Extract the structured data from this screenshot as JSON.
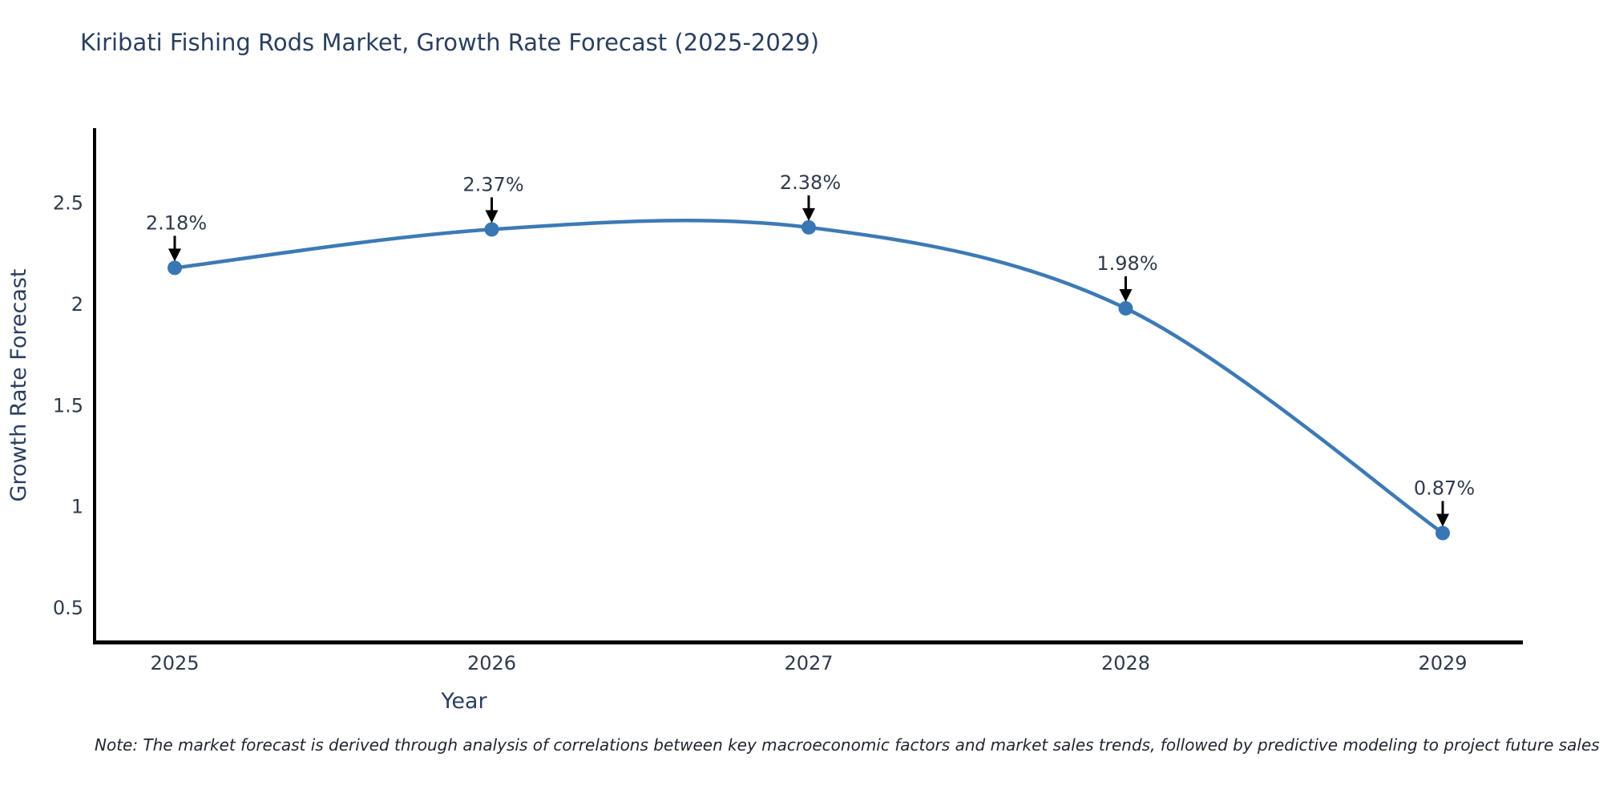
{
  "header": {
    "title": "Kiribati Fishing Rods Market, Growth Rate Forecast (2025-2029)"
  },
  "chart_data": {
    "type": "line",
    "title": "Kiribati Fishing Rods Market, Growth Rate Forecast (2025-2029)",
    "xlabel": "Year",
    "ylabel": "Growth Rate Forecast",
    "categories": [
      "2025",
      "2026",
      "2027",
      "2028",
      "2029"
    ],
    "series": [
      {
        "name": "Growth Rate Forecast",
        "values": [
          2.18,
          2.37,
          2.38,
          1.98,
          0.87
        ],
        "point_labels": [
          "2.18%",
          "2.37%",
          "2.38%",
          "1.98%",
          "0.87%"
        ]
      }
    ],
    "yticks": [
      0.5,
      1,
      1.5,
      2,
      2.5
    ],
    "ylim": [
      0.33,
      2.87
    ],
    "grid": false,
    "legend": "none",
    "line_shape": "spline",
    "colors": {
      "line": "#3d7ab5",
      "marker": "#3877b4",
      "axis": "#000000",
      "tick_text": "#2f3b4c",
      "annotation_text": "#2f3b4c",
      "annotation_arrow": "#000000",
      "title_text": "#2a3f5f"
    }
  },
  "footer": {
    "note": "Note: The market forecast is derived through analysis of correlations between key macroeconomic factors and market sales trends, followed by predictive modeling to project future sales"
  }
}
